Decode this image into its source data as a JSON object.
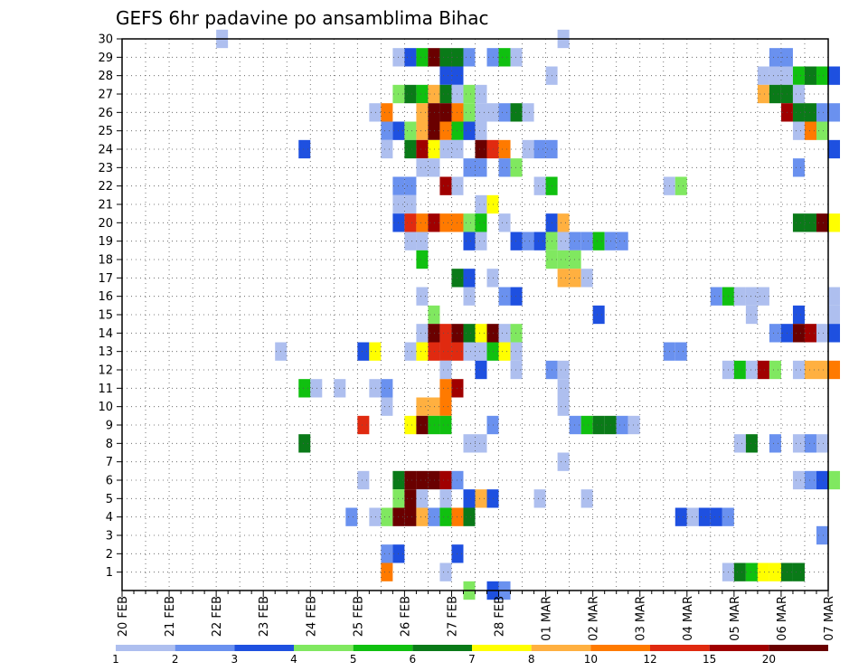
{
  "chart_data": {
    "type": "heatmap",
    "title": "GEFS 6hr padavine po ansamblima Bihac",
    "x_tick_labels": [
      "20 FEB",
      "21 FEB",
      "22 FEB",
      "23 FEB",
      "24 FEB",
      "25 FEB",
      "26 FEB",
      "27 FEB",
      "28 FEB",
      "01 MAR",
      "02 MAR",
      "03 MAR",
      "04 MAR",
      "05 MAR",
      "06 MAR",
      "07 MAR"
    ],
    "x_unit": "days from 20 FEB, 6-hour steps (0.25)",
    "y_tick_labels": [
      "1",
      "2",
      "3",
      "4",
      "5",
      "6",
      "7",
      "8",
      "9",
      "10",
      "11",
      "12",
      "13",
      "14",
      "15",
      "16",
      "17",
      "18",
      "19",
      "20",
      "21",
      "22",
      "23",
      "24",
      "25",
      "26",
      "27",
      "28",
      "29",
      "30"
    ],
    "xlim": [
      0,
      15
    ],
    "ylim": [
      0,
      30
    ],
    "grid": true,
    "colorbar": {
      "placement": "bottom",
      "labels": [
        "1",
        "2",
        "3",
        "4",
        "5",
        "6",
        "7",
        "8",
        "10",
        "12",
        "15",
        "20"
      ],
      "colors": [
        "#aebfef",
        "#6a91ef",
        "#1e50e0",
        "#80e860",
        "#10c010",
        "#0a7a18",
        "#ffff00",
        "#ffb040",
        "#ff7a00",
        "#e02a10",
        "#a00000",
        "#6a0000"
      ]
    },
    "cells": [
      [
        2,
        30,
        0
      ],
      [
        9.25,
        30,
        0
      ],
      [
        5.75,
        29,
        0
      ],
      [
        6,
        29,
        2
      ],
      [
        6.25,
        29,
        4
      ],
      [
        6.5,
        29,
        11
      ],
      [
        6.75,
        29,
        5
      ],
      [
        7,
        29,
        5
      ],
      [
        7.25,
        29,
        1
      ],
      [
        7.75,
        29,
        1
      ],
      [
        8,
        29,
        4
      ],
      [
        8.25,
        29,
        0
      ],
      [
        13.75,
        29,
        1
      ],
      [
        14,
        29,
        1
      ],
      [
        6.75,
        28,
        2
      ],
      [
        7,
        28,
        2
      ],
      [
        9,
        28,
        0
      ],
      [
        13.5,
        28,
        0
      ],
      [
        13.75,
        28,
        0
      ],
      [
        14,
        28,
        0
      ],
      [
        14.25,
        28,
        4
      ],
      [
        14.5,
        28,
        5
      ],
      [
        14.75,
        28,
        4
      ],
      [
        15,
        28,
        2
      ],
      [
        5.75,
        27,
        3
      ],
      [
        6,
        27,
        5
      ],
      [
        6.25,
        27,
        4
      ],
      [
        6.5,
        27,
        7
      ],
      [
        6.75,
        27,
        5
      ],
      [
        7,
        27,
        0
      ],
      [
        7.25,
        27,
        3
      ],
      [
        7.5,
        27,
        0
      ],
      [
        13.5,
        27,
        7
      ],
      [
        13.75,
        27,
        5
      ],
      [
        14,
        27,
        5
      ],
      [
        14.25,
        27,
        0
      ],
      [
        5.25,
        26,
        0
      ],
      [
        5.5,
        26,
        8
      ],
      [
        6.25,
        26,
        7
      ],
      [
        6.5,
        26,
        11
      ],
      [
        6.75,
        26,
        11
      ],
      [
        7,
        26,
        8
      ],
      [
        7.25,
        26,
        3
      ],
      [
        7.5,
        26,
        0
      ],
      [
        7.75,
        26,
        0
      ],
      [
        8,
        26,
        1
      ],
      [
        8.25,
        26,
        5
      ],
      [
        8.5,
        26,
        0
      ],
      [
        14,
        26,
        10
      ],
      [
        14.25,
        26,
        5
      ],
      [
        14.5,
        26,
        5
      ],
      [
        14.75,
        26,
        1
      ],
      [
        15,
        26,
        1
      ],
      [
        5.5,
        25,
        1
      ],
      [
        5.75,
        25,
        2
      ],
      [
        6,
        25,
        3
      ],
      [
        6.25,
        25,
        7
      ],
      [
        6.5,
        25,
        11
      ],
      [
        6.75,
        25,
        8
      ],
      [
        7,
        25,
        4
      ],
      [
        7.25,
        25,
        2
      ],
      [
        7.5,
        25,
        0
      ],
      [
        14.25,
        25,
        0
      ],
      [
        14.5,
        25,
        8
      ],
      [
        14.75,
        25,
        3
      ],
      [
        3.75,
        24,
        2
      ],
      [
        5.5,
        24,
        0
      ],
      [
        6,
        24,
        5
      ],
      [
        6.25,
        24,
        10
      ],
      [
        6.5,
        24,
        6
      ],
      [
        6.75,
        24,
        0
      ],
      [
        7,
        24,
        0
      ],
      [
        7.5,
        24,
        11
      ],
      [
        7.75,
        24,
        9
      ],
      [
        8,
        24,
        8
      ],
      [
        8.5,
        24,
        0
      ],
      [
        8.75,
        24,
        1
      ],
      [
        9,
        24,
        1
      ],
      [
        15,
        24,
        2
      ],
      [
        6.25,
        23,
        0
      ],
      [
        6.5,
        23,
        0
      ],
      [
        7.25,
        23,
        1
      ],
      [
        7.5,
        23,
        1
      ],
      [
        8,
        23,
        1
      ],
      [
        8.25,
        23,
        3
      ],
      [
        14.25,
        23,
        1
      ],
      [
        5.75,
        22,
        1
      ],
      [
        6,
        22,
        1
      ],
      [
        6.75,
        22,
        10
      ],
      [
        7,
        22,
        0
      ],
      [
        8.75,
        22,
        0
      ],
      [
        9,
        22,
        4
      ],
      [
        11.5,
        22,
        0
      ],
      [
        11.75,
        22,
        3
      ],
      [
        5.75,
        21,
        0
      ],
      [
        6,
        21,
        0
      ],
      [
        7.5,
        21,
        0
      ],
      [
        7.75,
        21,
        6
      ],
      [
        5.75,
        20,
        2
      ],
      [
        6,
        20,
        9
      ],
      [
        6.25,
        20,
        8
      ],
      [
        6.5,
        20,
        10
      ],
      [
        6.75,
        20,
        8
      ],
      [
        7,
        20,
        8
      ],
      [
        7.25,
        20,
        3
      ],
      [
        7.5,
        20,
        4
      ],
      [
        8,
        20,
        0
      ],
      [
        9,
        20,
        2
      ],
      [
        9.25,
        20,
        7
      ],
      [
        14.25,
        20,
        5
      ],
      [
        14.5,
        20,
        5
      ],
      [
        14.75,
        20,
        11
      ],
      [
        15,
        20,
        6
      ],
      [
        6,
        19,
        0
      ],
      [
        6.25,
        19,
        0
      ],
      [
        7.25,
        19,
        2
      ],
      [
        7.5,
        19,
        0
      ],
      [
        8.25,
        19,
        2
      ],
      [
        8.5,
        19,
        1
      ],
      [
        8.75,
        19,
        2
      ],
      [
        9,
        19,
        3
      ],
      [
        9.25,
        19,
        0
      ],
      [
        9.5,
        19,
        1
      ],
      [
        9.75,
        19,
        1
      ],
      [
        10,
        19,
        4
      ],
      [
        10.25,
        19,
        1
      ],
      [
        10.5,
        19,
        1
      ],
      [
        6.25,
        18,
        4
      ],
      [
        9,
        18,
        3
      ],
      [
        9.25,
        18,
        3
      ],
      [
        9.5,
        18,
        3
      ],
      [
        7,
        17,
        5
      ],
      [
        7.25,
        17,
        2
      ],
      [
        7.75,
        17,
        0
      ],
      [
        9.25,
        17,
        7
      ],
      [
        9.5,
        17,
        7
      ],
      [
        9.75,
        17,
        0
      ],
      [
        6.25,
        16,
        0
      ],
      [
        7.25,
        16,
        0
      ],
      [
        8,
        16,
        1
      ],
      [
        8.25,
        16,
        2
      ],
      [
        12.5,
        16,
        1
      ],
      [
        12.75,
        16,
        4
      ],
      [
        13,
        16,
        0
      ],
      [
        13.25,
        16,
        0
      ],
      [
        13.5,
        16,
        0
      ],
      [
        15,
        16,
        0
      ],
      [
        6.5,
        15,
        3
      ],
      [
        10,
        15,
        2
      ],
      [
        13.25,
        15,
        0
      ],
      [
        14.25,
        15,
        2
      ],
      [
        15,
        15,
        0
      ],
      [
        6.25,
        14,
        0
      ],
      [
        6.5,
        14,
        11
      ],
      [
        6.75,
        14,
        9
      ],
      [
        7,
        14,
        11
      ],
      [
        7.25,
        14,
        5
      ],
      [
        7.5,
        14,
        6
      ],
      [
        7.75,
        14,
        11
      ],
      [
        8,
        14,
        0
      ],
      [
        8.25,
        14,
        3
      ],
      [
        13.75,
        14,
        1
      ],
      [
        14,
        14,
        2
      ],
      [
        14.25,
        14,
        11
      ],
      [
        14.5,
        14,
        10
      ],
      [
        14.75,
        14,
        0
      ],
      [
        15,
        14,
        2
      ],
      [
        3.25,
        13,
        0
      ],
      [
        5,
        13,
        2
      ],
      [
        5.25,
        13,
        6
      ],
      [
        6,
        13,
        0
      ],
      [
        6.25,
        13,
        6
      ],
      [
        6.5,
        13,
        9
      ],
      [
        6.75,
        13,
        9
      ],
      [
        7,
        13,
        9
      ],
      [
        7.25,
        13,
        0
      ],
      [
        7.5,
        13,
        0
      ],
      [
        7.75,
        13,
        4
      ],
      [
        8,
        13,
        6
      ],
      [
        8.25,
        13,
        0
      ],
      [
        11.5,
        13,
        1
      ],
      [
        11.75,
        13,
        1
      ],
      [
        6.75,
        12,
        0
      ],
      [
        7.5,
        12,
        2
      ],
      [
        8.25,
        12,
        0
      ],
      [
        9,
        12,
        1
      ],
      [
        9.25,
        12,
        0
      ],
      [
        12.75,
        12,
        0
      ],
      [
        13,
        12,
        4
      ],
      [
        13.25,
        12,
        0
      ],
      [
        13.5,
        12,
        10
      ],
      [
        13.75,
        12,
        3
      ],
      [
        14.25,
        12,
        0
      ],
      [
        14.5,
        12,
        7
      ],
      [
        14.75,
        12,
        7
      ],
      [
        15,
        12,
        8
      ],
      [
        3.75,
        11,
        4
      ],
      [
        4,
        11,
        0
      ],
      [
        4.5,
        11,
        0
      ],
      [
        5.25,
        11,
        0
      ],
      [
        5.5,
        11,
        1
      ],
      [
        6.75,
        11,
        8
      ],
      [
        7,
        11,
        10
      ],
      [
        9.25,
        11,
        0
      ],
      [
        5.5,
        10,
        0
      ],
      [
        6.25,
        10,
        7
      ],
      [
        6.5,
        10,
        7
      ],
      [
        6.75,
        10,
        8
      ],
      [
        9.25,
        10,
        0
      ],
      [
        5,
        9,
        9
      ],
      [
        6,
        9,
        6
      ],
      [
        6.25,
        9,
        11
      ],
      [
        6.5,
        9,
        4
      ],
      [
        6.75,
        9,
        4
      ],
      [
        7.75,
        9,
        1
      ],
      [
        9.5,
        9,
        1
      ],
      [
        9.75,
        9,
        4
      ],
      [
        10,
        9,
        5
      ],
      [
        10.25,
        9,
        5
      ],
      [
        10.5,
        9,
        1
      ],
      [
        10.75,
        9,
        0
      ],
      [
        3.75,
        8,
        5
      ],
      [
        7.25,
        8,
        0
      ],
      [
        7.5,
        8,
        0
      ],
      [
        13,
        8,
        0
      ],
      [
        13.25,
        8,
        5
      ],
      [
        13.75,
        8,
        1
      ],
      [
        14.25,
        8,
        0
      ],
      [
        14.5,
        8,
        1
      ],
      [
        14.75,
        8,
        0
      ],
      [
        9.25,
        7,
        0
      ],
      [
        5,
        6,
        0
      ],
      [
        5.75,
        6,
        5
      ],
      [
        6,
        6,
        11
      ],
      [
        6.25,
        6,
        11
      ],
      [
        6.5,
        6,
        11
      ],
      [
        6.75,
        6,
        10
      ],
      [
        7,
        6,
        1
      ],
      [
        14.25,
        6,
        0
      ],
      [
        14.5,
        6,
        1
      ],
      [
        14.75,
        6,
        2
      ],
      [
        15,
        6,
        3
      ],
      [
        5.75,
        5,
        3
      ],
      [
        6,
        5,
        11
      ],
      [
        6.25,
        5,
        0
      ],
      [
        6.75,
        5,
        0
      ],
      [
        7.25,
        5,
        2
      ],
      [
        7.5,
        5,
        7
      ],
      [
        7.75,
        5,
        2
      ],
      [
        8.75,
        5,
        0
      ],
      [
        9.75,
        5,
        0
      ],
      [
        4.75,
        4,
        1
      ],
      [
        5.25,
        4,
        0
      ],
      [
        5.5,
        4,
        3
      ],
      [
        5.75,
        4,
        11
      ],
      [
        6,
        4,
        11
      ],
      [
        6.25,
        4,
        7
      ],
      [
        6.5,
        4,
        1
      ],
      [
        6.75,
        4,
        4
      ],
      [
        7,
        4,
        8
      ],
      [
        7.25,
        4,
        5
      ],
      [
        11.75,
        4,
        2
      ],
      [
        12,
        4,
        0
      ],
      [
        12.25,
        4,
        2
      ],
      [
        12.5,
        4,
        2
      ],
      [
        12.75,
        4,
        1
      ],
      [
        14.75,
        3,
        1
      ],
      [
        5.5,
        2,
        1
      ],
      [
        5.75,
        2,
        2
      ],
      [
        7,
        2,
        2
      ],
      [
        5.5,
        1,
        8
      ],
      [
        6.75,
        1,
        0
      ],
      [
        12.75,
        1,
        0
      ],
      [
        13,
        1,
        5
      ],
      [
        13.25,
        1,
        4
      ],
      [
        13.5,
        1,
        6
      ],
      [
        13.75,
        1,
        6
      ],
      [
        14,
        1,
        5
      ],
      [
        14.25,
        1,
        5
      ],
      [
        7.25,
        0,
        3
      ],
      [
        7.75,
        0,
        2
      ],
      [
        8,
        0,
        1
      ]
    ]
  }
}
